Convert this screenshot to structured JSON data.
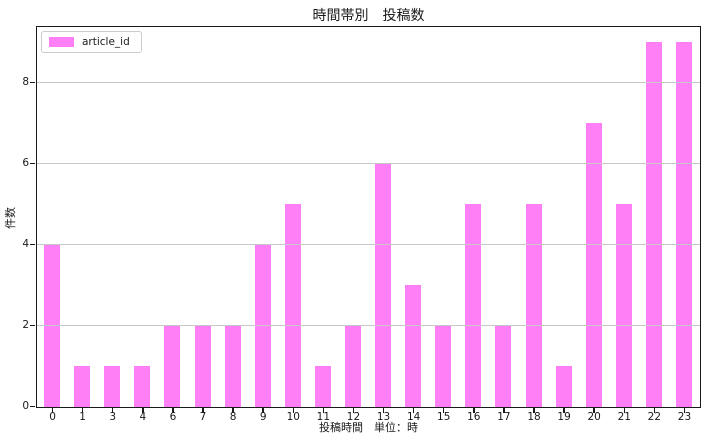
{
  "chart_data": {
    "type": "bar",
    "title": "時間帯別　投稿数",
    "xlabel": "投稿時間　単位：時",
    "ylabel": "件数",
    "categories": [
      "0",
      "1",
      "3",
      "4",
      "6",
      "7",
      "8",
      "9",
      "10",
      "11",
      "12",
      "13",
      "14",
      "15",
      "16",
      "17",
      "18",
      "19",
      "20",
      "21",
      "22",
      "23"
    ],
    "values": [
      4,
      1,
      1,
      1,
      2,
      2,
      2,
      4,
      5,
      1,
      2,
      6,
      3,
      2,
      5,
      2,
      5,
      1,
      7,
      5,
      9,
      9
    ],
    "series_name": "article_id",
    "yticks": [
      0,
      2,
      4,
      6,
      8
    ],
    "ylim": [
      0,
      9.35
    ],
    "grid": "horizontal",
    "legend_position": "upper-left",
    "colors": {
      "bar": "#ff80f6",
      "grid": "#c8c8c8",
      "spine": "#1a1a1a",
      "text": "#1a1a1a",
      "legend_border": "#cccccc",
      "background": "#ffffff"
    }
  }
}
